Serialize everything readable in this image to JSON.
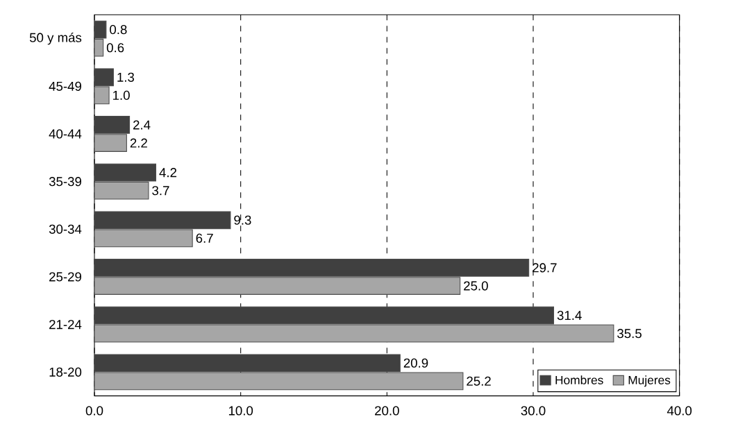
{
  "chart_data": {
    "type": "bar",
    "orientation": "horizontal",
    "categories": [
      "50 y más",
      "45-49",
      "40-44",
      "35-39",
      "30-34",
      "25-29",
      "21-24",
      "18-20"
    ],
    "series": [
      {
        "name": "Hombres",
        "color": "#404040",
        "values": [
          0.8,
          1.3,
          2.4,
          4.2,
          9.3,
          29.7,
          31.4,
          20.9
        ],
        "value_labels": [
          "0.8",
          "1.3",
          "2.4",
          "4.2",
          "9.3",
          "29.7",
          "31.4",
          "20.9"
        ]
      },
      {
        "name": "Mujeres",
        "color": "#a6a6a6",
        "values": [
          0.6,
          1.0,
          2.2,
          3.7,
          6.7,
          25.0,
          35.5,
          25.2
        ],
        "value_labels": [
          "0.6",
          "1.0",
          "2.2",
          "3.7",
          "6.7",
          "25.0",
          "35.5",
          "25.2"
        ]
      }
    ],
    "xlim": [
      0,
      40
    ],
    "xticks": [
      {
        "value": 0,
        "label": "0.0"
      },
      {
        "value": 10,
        "label": "10.0"
      },
      {
        "value": 20,
        "label": "20.0"
      },
      {
        "value": 30,
        "label": "30.0"
      },
      {
        "value": 40,
        "label": "40.0"
      }
    ],
    "grid": "x",
    "legend": "bottom right"
  }
}
